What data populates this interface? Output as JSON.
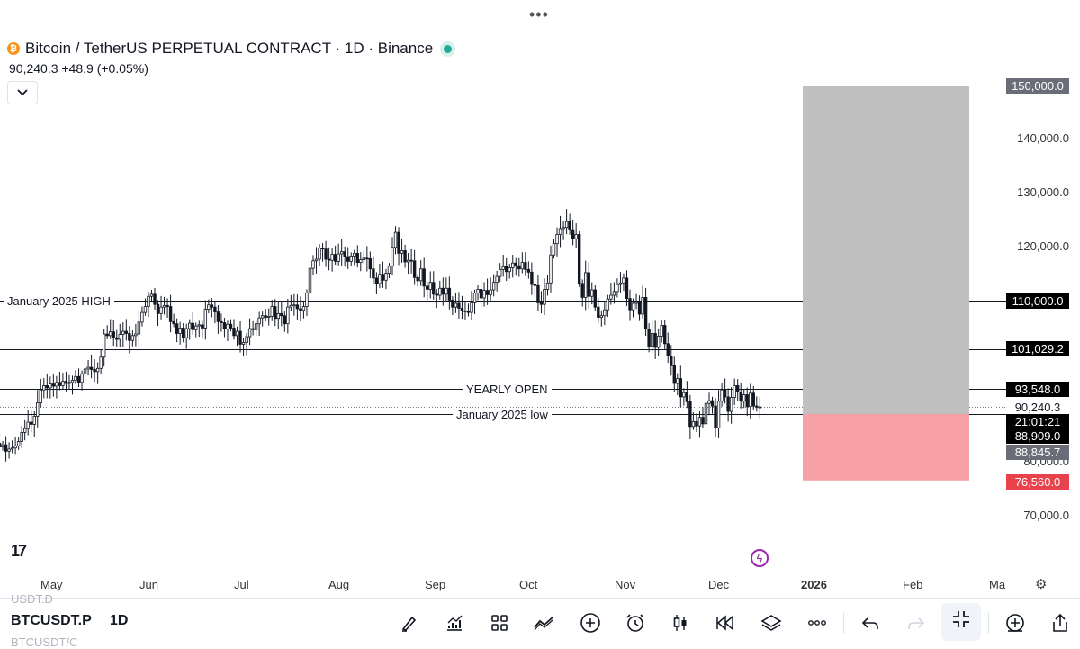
{
  "header": {
    "title": "Bitcoin / TetherUS PERPETUAL CONTRACT · 1D · Binance",
    "price_change": "90,240.3  +48.9 (+0.05%)",
    "more_menu": "•••",
    "coin_glyph": "₿"
  },
  "levels": {
    "jan_high_label": "January 2025 HIGH",
    "yearly_open_label": "YEARLY OPEN",
    "jan_low_label": "January 2025 low"
  },
  "price_axis": {
    "labels": [
      "140,000.0",
      "130,000.0",
      "120,000.0",
      "80,000.0",
      "70,000.0"
    ],
    "tag_150k": "150,000.0",
    "tag_110k": "110,000.0",
    "tag_101k": "101,029.2",
    "tag_93k": "93,548.0",
    "tag_last": "90,240.3",
    "tag_countdown": "21:01:21",
    "tag_88909": "88,909.0",
    "tag_88845": "88,845.7",
    "tag_stop": "76,560.0"
  },
  "time_axis": {
    "labels": [
      "May",
      "Jun",
      "Jul",
      "Aug",
      "Sep",
      "Oct",
      "Nov",
      "Dec",
      "2026",
      "Feb",
      "Ma"
    ]
  },
  "footer": {
    "symbol": "BTCUSDT.P",
    "timeframe": "1D",
    "ghost_top": "USDT.D",
    "ghost_bottom": "BTCUSDT/C",
    "logo": "17",
    "tools": [
      "brush-icon",
      "chart-indicator-icon",
      "grid-icon",
      "compare-icon",
      "plus-circle-icon",
      "alarm-icon",
      "candles-icon",
      "replay-icon",
      "layers-icon",
      "more-icon",
      "undo-icon",
      "redo-icon",
      "fullscreen-icon",
      "add-widget-icon",
      "share-icon"
    ]
  },
  "colors": {
    "up": "#131722",
    "down": "#131722",
    "profit_zone": "#c0c0c0",
    "loss_zone": "#f7a1a6",
    "stop_tag": "#e8424d",
    "black_tag": "#000000",
    "gray_tag": "#6a6d78"
  },
  "chart_data": {
    "type": "candlestick",
    "series_name": "",
    "ylim": [
      66000,
      153000
    ],
    "start_date": "2025-04-01",
    "interval": "1D",
    "closes": [
      83500,
      82800,
      83200,
      82000,
      82400,
      82600,
      83000,
      83800,
      85500,
      86200,
      87400,
      87000,
      88500,
      91000,
      93400,
      94200,
      93800,
      94500,
      94100,
      94800,
      94200,
      95000,
      94600,
      94800,
      95200,
      95900,
      94800,
      96400,
      97300,
      97600,
      97200,
      96800,
      97400,
      99500,
      103800,
      103500,
      104200,
      103100,
      102800,
      103700,
      104300,
      103900,
      102600,
      103500,
      103800,
      106000,
      107800,
      108900,
      110800,
      111200,
      109300,
      107600,
      108800,
      109100,
      108900,
      106100,
      105700,
      103900,
      104900,
      103100,
      104800,
      105800,
      104600,
      105300,
      105500,
      104900,
      108400,
      109200,
      108800,
      107900,
      106100,
      105900,
      104700,
      105600,
      104900,
      103500,
      104300,
      101900,
      102200,
      103300,
      104800,
      104600,
      105700,
      106800,
      107200,
      106900,
      107100,
      108900,
      106700,
      107600,
      107200,
      105700,
      108800,
      109100,
      109200,
      108500,
      108200,
      108900,
      111400,
      116000,
      117400,
      117700,
      119800,
      119600,
      117700,
      117500,
      118600,
      117300,
      118700,
      119100,
      118200,
      117300,
      118300,
      118800,
      117100,
      117600,
      117900,
      117800,
      115900,
      114200,
      113200,
      114900,
      113800,
      115100,
      116400,
      119900,
      122700,
      118800,
      119300,
      117200,
      117500,
      117400,
      114300,
      113700,
      115900,
      112700,
      112100,
      113400,
      111200,
      111000,
      112300,
      111200,
      112300,
      110100,
      108800,
      109500,
      108600,
      108100,
      108000,
      107800,
      109600,
      111400,
      112100,
      110500,
      111900,
      111100,
      112000,
      113400,
      114500,
      115800,
      116300,
      115400,
      116100,
      117000,
      116500,
      115900,
      117100,
      115800,
      115300,
      113000,
      112800,
      109600,
      109300,
      112100,
      113300,
      118500,
      120600,
      122300,
      123400,
      123600,
      124700,
      123200,
      121500,
      122300,
      113200,
      110600,
      115200,
      110800,
      112000,
      108800,
      106900,
      107200,
      108300,
      110300,
      111000,
      111700,
      113000,
      113300,
      114200,
      110400,
      108300,
      109500,
      109700,
      107500,
      110600,
      104700,
      101500,
      103900,
      101300,
      103400,
      105400,
      102000,
      99700,
      97900,
      94600,
      95500,
      92100,
      92900,
      91200,
      86600,
      87500,
      86700,
      88300,
      87100,
      90900,
      91400,
      90400,
      86300,
      91300,
      93400,
      92100,
      89400,
      92000,
      94200,
      93000,
      91300,
      92500,
      90300,
      92800,
      90400,
      90200,
      90240
    ],
    "levels": [
      {
        "name": "January 2025 HIGH",
        "value": 110000
      },
      {
        "name": "",
        "value": 101029.2
      },
      {
        "name": "YEARLY OPEN",
        "value": 93548
      },
      {
        "name": "January 2025 low",
        "value": 88909
      }
    ],
    "position": {
      "entry": 88909,
      "target": 150000,
      "stop": 76560
    }
  }
}
